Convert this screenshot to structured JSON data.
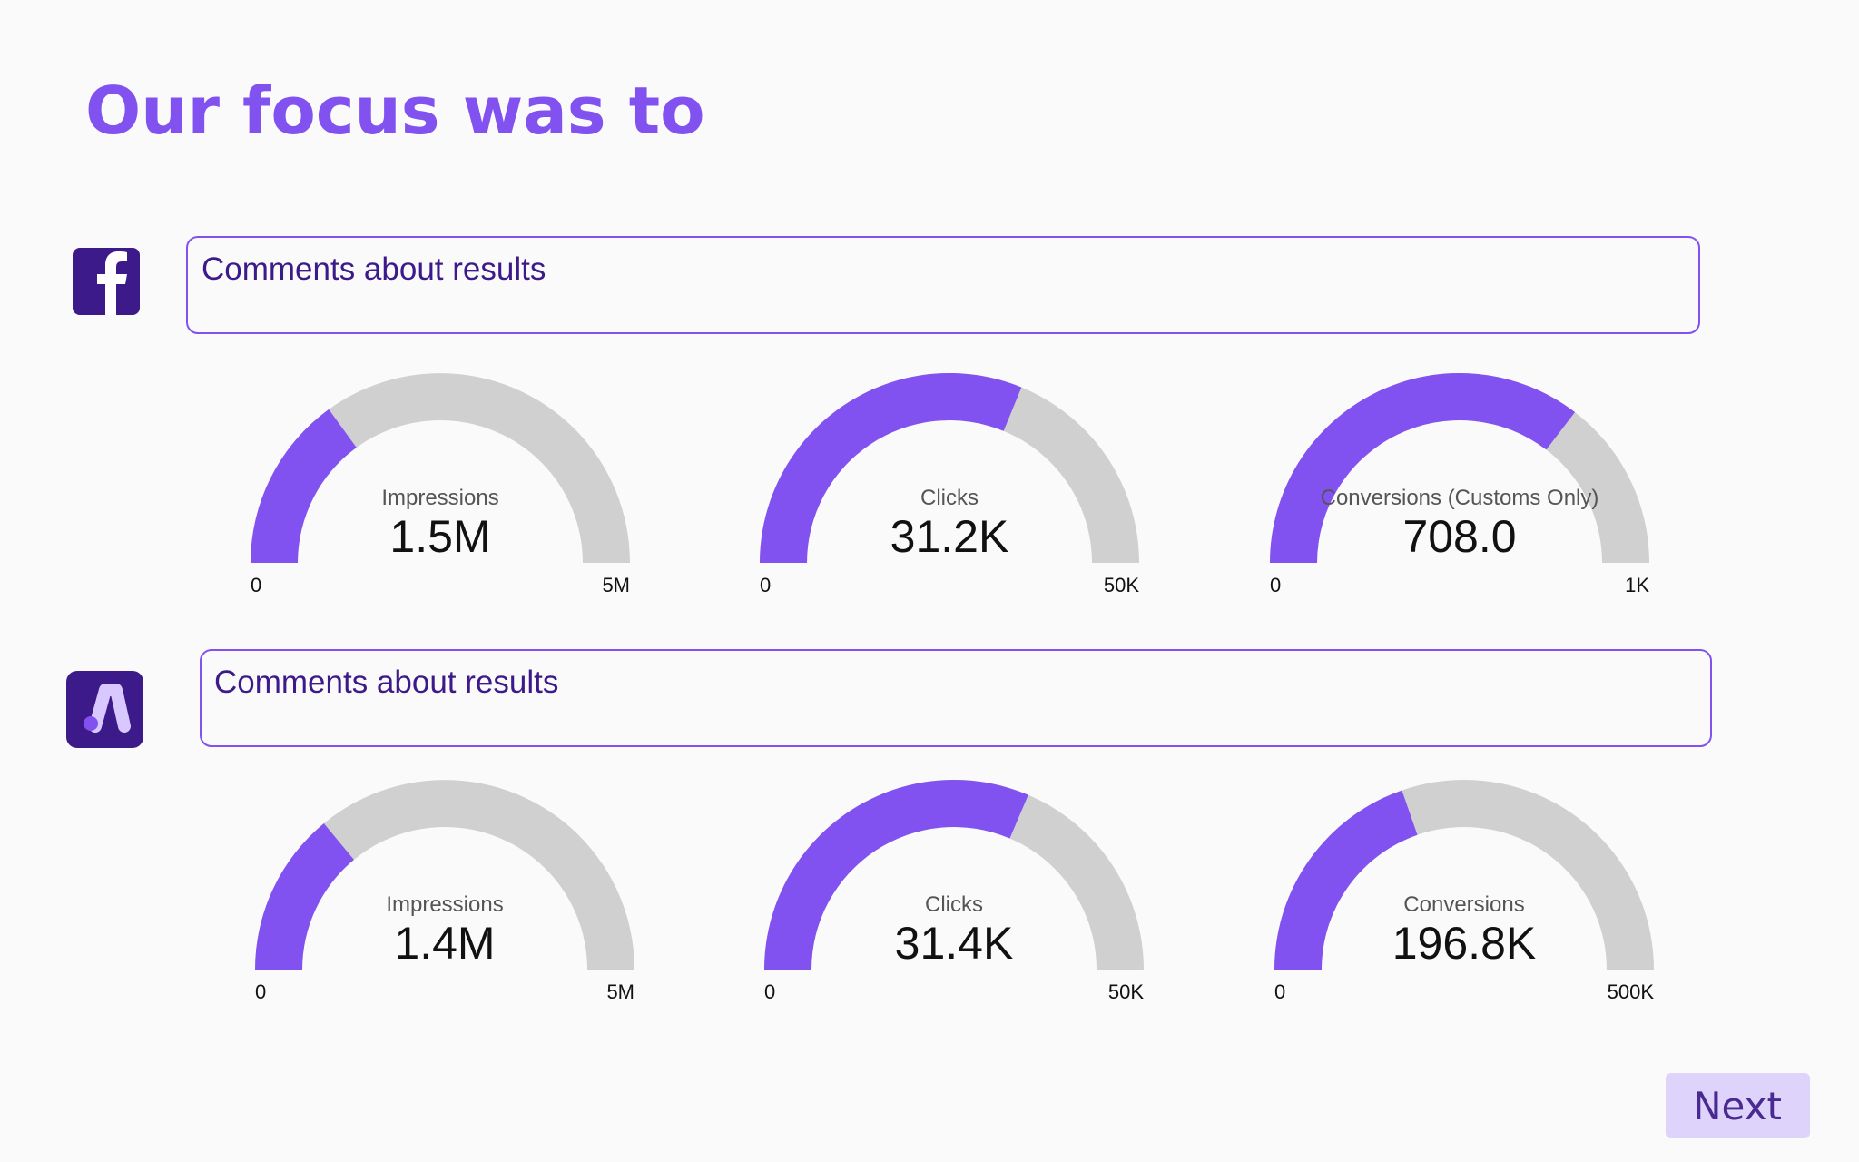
{
  "header": {
    "title": "Our focus was to"
  },
  "sections": [
    {
      "comment": "Comments about results"
    },
    {
      "comment": "Comments about results"
    }
  ],
  "chart_data": [
    {
      "type": "gauge",
      "title": "Impressions",
      "values": [
        1500000
      ],
      "value_labels": [
        "1.5M"
      ],
      "color": "#8152f0",
      "ylim": [
        0,
        5000000
      ],
      "yticks": [
        0,
        {
          "value": 5000000,
          "label": "5M"
        }
      ]
    },
    {
      "type": "gauge",
      "title": "Clicks",
      "values": [
        31200
      ],
      "value_labels": [
        "31.2K"
      ],
      "color": "#8152f0",
      "ylim": [
        0,
        50000
      ],
      "yticks": [
        0,
        {
          "value": 50000,
          "label": "50K"
        }
      ]
    },
    {
      "type": "gauge",
      "title": "Conversions (Customs Only)",
      "values": [
        708
      ],
      "value_labels": [
        "708.0"
      ],
      "color": "#8152f0",
      "ylim": [
        0,
        1000
      ],
      "yticks": [
        0,
        {
          "value": 1000,
          "label": "1K"
        }
      ]
    },
    {
      "type": "gauge",
      "title": "Impressions",
      "values": [
        1400000
      ],
      "value_labels": [
        "1.4M"
      ],
      "color": "#8152f0",
      "ylim": [
        0,
        5000000
      ],
      "yticks": [
        0,
        {
          "value": 5000000,
          "label": "5M"
        }
      ]
    },
    {
      "type": "gauge",
      "title": "Clicks",
      "values": [
        31400
      ],
      "value_labels": [
        "31.4K"
      ],
      "color": "#8152f0",
      "ylim": [
        0,
        50000
      ],
      "yticks": [
        0,
        {
          "value": 50000,
          "label": "50K"
        }
      ]
    },
    {
      "type": "gauge",
      "title": "Conversions",
      "values": [
        196800
      ],
      "value_labels": [
        "196.8K"
      ],
      "color": "#8152f0",
      "ylim": [
        0,
        500000
      ],
      "yticks": [
        0,
        {
          "value": 500000,
          "label": "500K"
        }
      ]
    }
  ],
  "button": {
    "label": "Next"
  }
}
